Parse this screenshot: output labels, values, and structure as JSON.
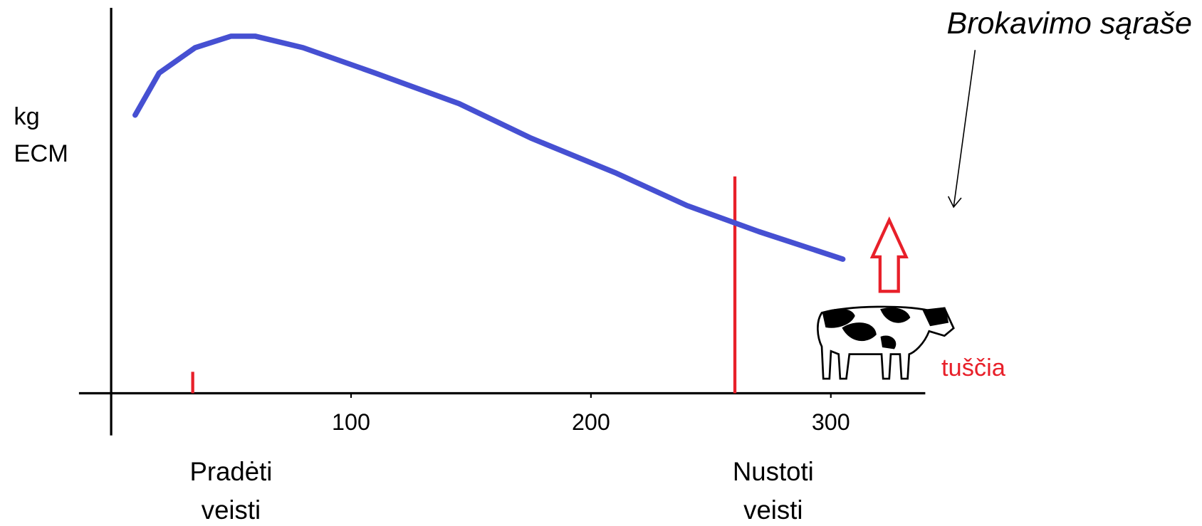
{
  "chart_data": {
    "type": "line",
    "y_label": [
      "kg",
      "ECM"
    ],
    "x": [
      10,
      20,
      35,
      50,
      60,
      80,
      110,
      145,
      175,
      210,
      240,
      270,
      305
    ],
    "series": [
      {
        "color": "#4650d2",
        "values": [
          72.6,
          83.6,
          90.2,
          93.2,
          93.2,
          90.2,
          83.6,
          75.6,
          66.6,
          57.6,
          49,
          42.2,
          35
        ]
      }
    ],
    "xlim": [
      0,
      340
    ],
    "ylim": [
      0,
      100
    ],
    "xticks": [
      100,
      200,
      300
    ],
    "markers": [
      {
        "x": 34,
        "top": 5.6,
        "color": "#e8202a",
        "label": [
          "Pradėti",
          "veisti"
        ]
      },
      {
        "x": 260,
        "top": 56.6,
        "color": "#e8202a",
        "label": [
          "Nustoti",
          "veisti"
        ]
      }
    ],
    "annotations": {
      "culling": "Brokavimo sąraše",
      "status": "tuščia"
    }
  }
}
